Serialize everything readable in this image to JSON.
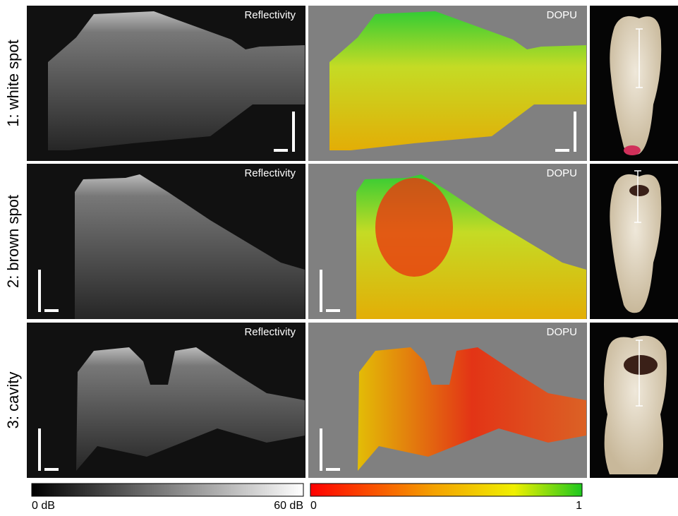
{
  "rows": [
    {
      "label": "1: white spot",
      "panels": [
        "Reflectivity",
        "DOPU"
      ]
    },
    {
      "label": "2: brown spot",
      "panels": [
        "Reflectivity",
        "DOPU"
      ]
    },
    {
      "label": "3: cavity",
      "panels": [
        "Reflectivity",
        "DOPU"
      ]
    }
  ],
  "colorbars": [
    {
      "min_label": "0 dB",
      "max_label": "60 dB"
    },
    {
      "min_label": "0",
      "max_label": "1"
    }
  ]
}
